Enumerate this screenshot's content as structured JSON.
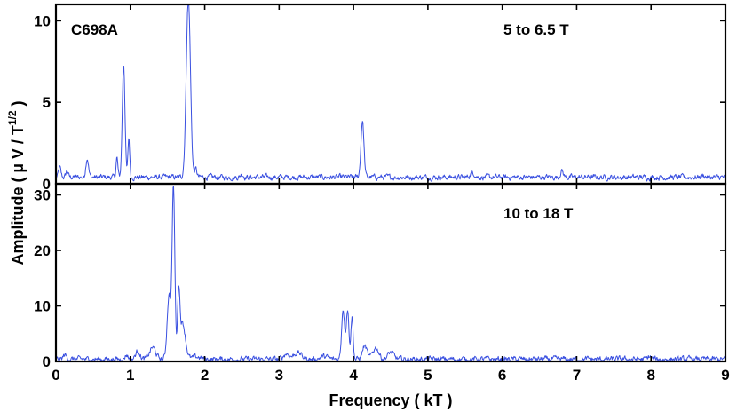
{
  "figure": {
    "xlabel": "Frequency ( kT )",
    "ylabel": "Amplitude ( µ V / T",
    "ylabel_exponent": "1/2",
    "ylabel_close": " )",
    "series_color": "#3a50e0"
  },
  "chart_data": [
    {
      "type": "line",
      "panel": "top",
      "sample_label": "C698A",
      "field_range_label": "5 to 6.5 T",
      "xlim": [
        0,
        9
      ],
      "ylim": [
        0,
        11
      ],
      "xticks": [
        0,
        1,
        2,
        3,
        4,
        5,
        6,
        7,
        8,
        9
      ],
      "xtick_labels_shown": false,
      "yticks": [
        0,
        5,
        10
      ],
      "ytick_labels": [
        "0",
        "5",
        "10"
      ],
      "baseline": 0.4,
      "peaks": [
        {
          "x": 0.05,
          "y": 1.0,
          "width": 0.015
        },
        {
          "x": 0.15,
          "y": 0.8,
          "width": 0.015
        },
        {
          "x": 0.42,
          "y": 1.6,
          "width": 0.018
        },
        {
          "x": 0.82,
          "y": 1.6,
          "width": 0.012
        },
        {
          "x": 0.91,
          "y": 7.4,
          "width": 0.018
        },
        {
          "x": 0.98,
          "y": 2.8,
          "width": 0.012
        },
        {
          "x": 1.78,
          "y": 11.5,
          "width": 0.028
        },
        {
          "x": 1.88,
          "y": 0.9,
          "width": 0.015
        },
        {
          "x": 2.5,
          "y": 0.6,
          "width": 0.02
        },
        {
          "x": 4.12,
          "y": 3.9,
          "width": 0.02
        },
        {
          "x": 5.6,
          "y": 0.7,
          "width": 0.03
        },
        {
          "x": 6.8,
          "y": 0.8,
          "width": 0.02
        },
        {
          "x": 8.7,
          "y": 0.5,
          "width": 0.03
        }
      ]
    },
    {
      "type": "line",
      "panel": "bottom",
      "field_range_label": "10 to 18 T",
      "xlim": [
        0,
        9
      ],
      "ylim": [
        0,
        32
      ],
      "xticks": [
        0,
        1,
        2,
        3,
        4,
        5,
        6,
        7,
        8,
        9
      ],
      "xtick_labels": [
        "0",
        "1",
        "2",
        "3",
        "4",
        "5",
        "6",
        "7",
        "8",
        "9"
      ],
      "yticks": [
        0,
        10,
        20,
        30
      ],
      "ytick_labels": [
        "0",
        "10",
        "20",
        "30"
      ],
      "baseline": 0.4,
      "peaks": [
        {
          "x": 0.12,
          "y": 1.2,
          "width": 0.02
        },
        {
          "x": 0.95,
          "y": 1.2,
          "width": 0.02
        },
        {
          "x": 1.1,
          "y": 1.8,
          "width": 0.03
        },
        {
          "x": 1.3,
          "y": 2.5,
          "width": 0.04
        },
        {
          "x": 1.52,
          "y": 12.0,
          "width": 0.025
        },
        {
          "x": 1.58,
          "y": 31.0,
          "width": 0.018
        },
        {
          "x": 1.65,
          "y": 11.0,
          "width": 0.015
        },
        {
          "x": 1.7,
          "y": 7.0,
          "width": 0.04
        },
        {
          "x": 1.9,
          "y": 0.8,
          "width": 0.05
        },
        {
          "x": 3.1,
          "y": 1.4,
          "width": 0.04
        },
        {
          "x": 3.25,
          "y": 1.6,
          "width": 0.05
        },
        {
          "x": 3.6,
          "y": 0.9,
          "width": 0.05
        },
        {
          "x": 3.86,
          "y": 9.5,
          "width": 0.02
        },
        {
          "x": 3.92,
          "y": 9.3,
          "width": 0.018
        },
        {
          "x": 3.98,
          "y": 8.0,
          "width": 0.015
        },
        {
          "x": 4.15,
          "y": 2.8,
          "width": 0.03
        },
        {
          "x": 4.3,
          "y": 2.5,
          "width": 0.04
        },
        {
          "x": 4.5,
          "y": 1.6,
          "width": 0.04
        },
        {
          "x": 7.98,
          "y": 0.9,
          "width": 0.02
        }
      ]
    }
  ]
}
